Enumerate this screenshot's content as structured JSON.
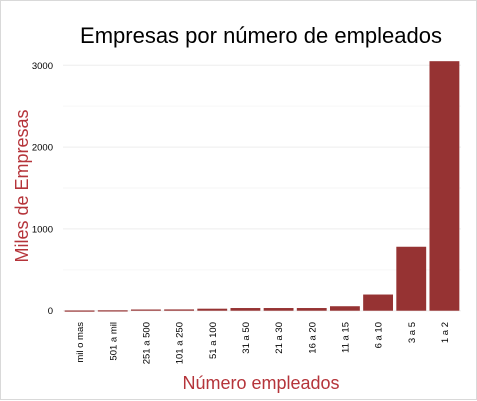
{
  "chart_data": {
    "type": "bar",
    "title": "Empresas por número de empleados",
    "xlabel": "Número empleados",
    "ylabel": "Miles de Empresas",
    "categories": [
      "mil o mas",
      "501 a mil",
      "251 a 500",
      "101 a 250",
      "51 a 100",
      "31 a 50",
      "21 a 30",
      "16 a 20",
      "11 a 15",
      "6 a 10",
      "3 a 5",
      "1 a 2"
    ],
    "values": [
      3,
      5,
      15,
      16,
      25,
      33,
      33,
      33,
      55,
      198,
      782,
      3050
    ],
    "ylim": [
      -40,
      3150
    ],
    "yticks": [
      0,
      1000,
      2000,
      3000
    ],
    "grid": true,
    "colors": {
      "bar": "#963333",
      "axis_title": "#b5343a"
    }
  }
}
